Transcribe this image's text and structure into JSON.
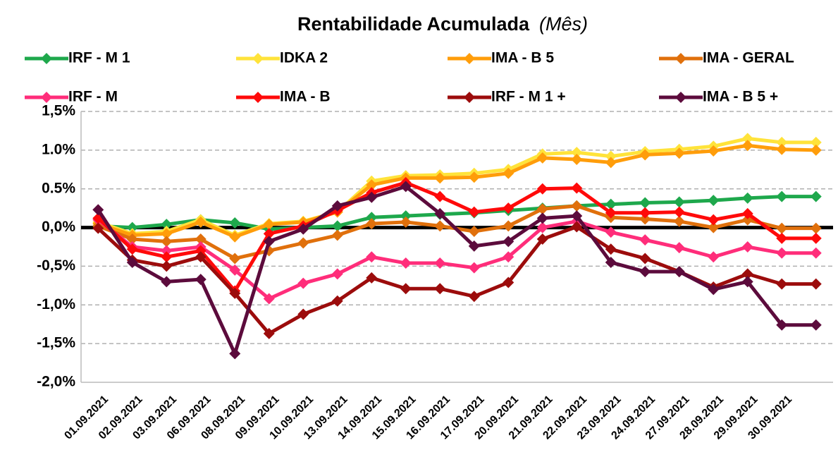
{
  "chart_data": {
    "type": "line",
    "title": "Rentabilidade Acumulada",
    "title_note": "(Mês)",
    "categories": [
      "01.09.2021",
      "02.09.2021",
      "03.09.2021",
      "06.09.2021",
      "08.09.2021",
      "09.09.2021",
      "10.09.2021",
      "13.09.2021",
      "14.09.2021",
      "15.09.2021",
      "16.09.2021",
      "17.09.2021",
      "20.09.2021",
      "21.09.2021",
      "22.09.2021",
      "23.09.2021",
      "24.09.2021",
      "27.09.2021",
      "28.09.2021",
      "29.09.2021",
      "30.09.2021",
      null
    ],
    "ylim": [
      -2,
      1.5
    ],
    "yticks": [
      {
        "value": -2,
        "label": "-2,0%"
      },
      {
        "value": -1.5,
        "label": "-1,5%"
      },
      {
        "value": -1,
        "label": "-1,0%"
      },
      {
        "value": -0.5,
        "label": "-0,5%"
      },
      {
        "value": 0,
        "label": "0,0%"
      },
      {
        "value": 0.5,
        "label": "0.5%"
      },
      {
        "value": 1,
        "label": "1.0%"
      },
      {
        "value": 1.5,
        "label": "1,5%"
      }
    ],
    "grid": true,
    "series": [
      {
        "name": "IRF - M 1",
        "color": "#1ea84c",
        "values": [
          0.02,
          0.0,
          0.04,
          0.1,
          0.06,
          -0.02,
          0.0,
          0.02,
          0.13,
          0.15,
          0.17,
          0.19,
          0.22,
          0.25,
          0.28,
          0.3,
          0.32,
          0.33,
          0.35,
          0.38,
          0.4,
          0.4
        ]
      },
      {
        "name": "IDKA 2",
        "color": "#ffe33a",
        "values": [
          0.07,
          -0.08,
          -0.05,
          0.1,
          -0.1,
          0.05,
          0.08,
          0.2,
          0.6,
          0.67,
          0.68,
          0.7,
          0.75,
          0.95,
          0.97,
          0.92,
          0.98,
          1.01,
          1.05,
          1.15,
          1.1,
          1.1
        ]
      },
      {
        "name": "IMA - B 5",
        "color": "#ff9d0a",
        "values": [
          0.05,
          -0.1,
          -0.08,
          0.07,
          -0.12,
          0.04,
          0.07,
          0.2,
          0.55,
          0.64,
          0.64,
          0.65,
          0.7,
          0.9,
          0.88,
          0.84,
          0.94,
          0.96,
          0.99,
          1.06,
          1.01,
          1.0
        ]
      },
      {
        "name": "IMA - GERAL",
        "color": "#e0700c",
        "values": [
          0.02,
          -0.15,
          -0.18,
          -0.15,
          -0.4,
          -0.3,
          -0.2,
          -0.1,
          0.05,
          0.07,
          0.02,
          -0.05,
          0.02,
          0.24,
          0.28,
          0.13,
          0.11,
          0.08,
          0.0,
          0.1,
          -0.01,
          -0.01
        ]
      },
      {
        "name": "IRF - M",
        "color": "#ff2d7a",
        "values": [
          0.1,
          -0.25,
          -0.3,
          -0.25,
          -0.55,
          -0.92,
          -0.72,
          -0.6,
          -0.38,
          -0.46,
          -0.46,
          -0.52,
          -0.38,
          0.0,
          0.08,
          -0.06,
          -0.16,
          -0.26,
          -0.38,
          -0.25,
          -0.33,
          -0.33
        ]
      },
      {
        "name": "IMA - B",
        "color": "#ff0a0a",
        "values": [
          0.12,
          -0.28,
          -0.38,
          -0.3,
          -0.82,
          -0.08,
          0.02,
          0.22,
          0.45,
          0.58,
          0.4,
          0.2,
          0.25,
          0.5,
          0.51,
          0.19,
          0.19,
          0.2,
          0.1,
          0.18,
          -0.14,
          -0.14
        ]
      },
      {
        "name": "IRF - M 1 +",
        "color": "#9c0c0c",
        "values": [
          -0.01,
          -0.42,
          -0.5,
          -0.38,
          -0.85,
          -1.37,
          -1.12,
          -0.95,
          -0.65,
          -0.79,
          -0.79,
          -0.89,
          -0.71,
          -0.15,
          0.01,
          -0.28,
          -0.4,
          -0.57,
          -0.77,
          -0.6,
          -0.73,
          -0.73
        ]
      },
      {
        "name": "IMA - B 5 +",
        "color": "#5c0b3c",
        "values": [
          0.23,
          -0.45,
          -0.7,
          -0.67,
          -1.63,
          -0.18,
          -0.02,
          0.28,
          0.39,
          0.53,
          0.18,
          -0.24,
          -0.18,
          0.12,
          0.15,
          -0.45,
          -0.57,
          -0.57,
          -0.8,
          -0.7,
          -1.26,
          -1.26
        ]
      }
    ]
  }
}
